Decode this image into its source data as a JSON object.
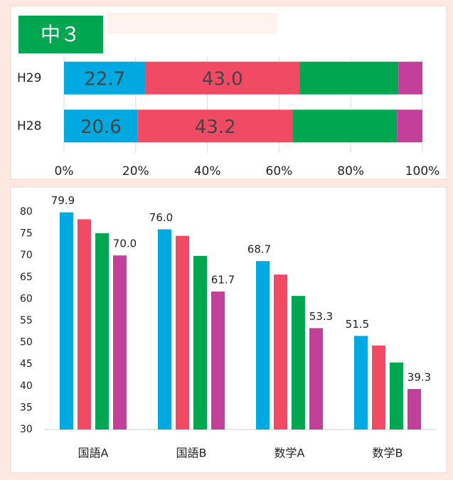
{
  "chart_data": [
    {
      "type": "bar",
      "orientation": "horizontal",
      "stacked": true,
      "title": "中３",
      "categories": [
        "H29",
        "H28"
      ],
      "series": [
        {
          "color": "#00a9e0",
          "values": [
            22.7,
            20.6
          ],
          "value_labels": [
            "22.7",
            "20.6"
          ]
        },
        {
          "color": "#f04a64",
          "values": [
            43.0,
            43.2
          ],
          "value_labels": [
            "43.0",
            "43.2"
          ]
        },
        {
          "color": "#00a650",
          "values": [
            27.6,
            29.1
          ]
        },
        {
          "color": "#c2409a",
          "values": [
            6.7,
            7.1
          ]
        }
      ],
      "xlim": [
        0,
        100
      ],
      "xticks": [
        {
          "value": 0,
          "label": "0%"
        },
        {
          "value": 20,
          "label": "20%"
        },
        {
          "value": 40,
          "label": "40%"
        },
        {
          "value": 60,
          "label": "60%"
        },
        {
          "value": 80,
          "label": "80%"
        },
        {
          "value": 100,
          "label": "100%"
        }
      ],
      "grid": true
    },
    {
      "type": "bar",
      "categories": [
        "国語A",
        "国語B",
        "数学A",
        "数学B"
      ],
      "series": [
        {
          "color": "#00a9e0",
          "values": [
            79.9,
            76.0,
            68.7,
            51.5
          ],
          "value_labels": [
            "79.9",
            "76.0",
            "68.7",
            "51.5"
          ]
        },
        {
          "color": "#f04a64",
          "values": [
            78.3,
            74.5,
            65.6,
            49.3
          ]
        },
        {
          "color": "#00a650",
          "values": [
            75.1,
            69.9,
            60.7,
            45.4
          ]
        },
        {
          "color": "#c2409a",
          "values": [
            70.0,
            61.7,
            53.3,
            39.3
          ],
          "value_labels": [
            "70.0",
            "61.7",
            "53.3",
            "39.3"
          ]
        }
      ],
      "ylim": [
        30,
        80
      ],
      "yticks": [
        30,
        35,
        40,
        45,
        50,
        55,
        60,
        65,
        70,
        75,
        80
      ]
    }
  ]
}
